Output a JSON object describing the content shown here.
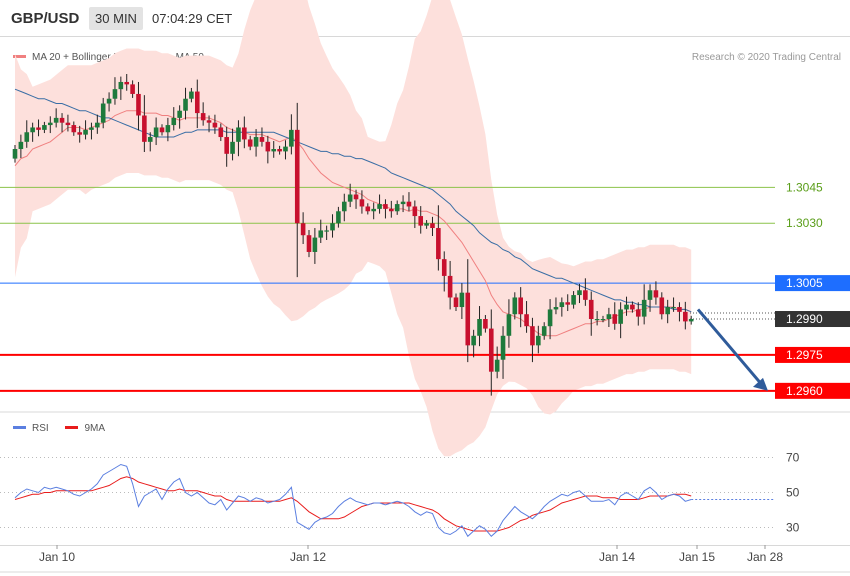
{
  "header": {
    "symbol": "GBP/USD",
    "timeframe": "30 MIN",
    "time": "07:04:29 CET"
  },
  "legend_main": {
    "ma20_label": "MA 20 + Bollinger Bands",
    "ma50_label": "MA 50",
    "ma20_color": "#f08080",
    "ma50_color": "#3a6ea5"
  },
  "copyright": "Research © 2020 Trading Central",
  "legend_rsi": {
    "rsi_label": "RSI",
    "ma9_label": "9MA",
    "rsi_color": "#5b7fe0",
    "ma9_color": "#e81c1c"
  },
  "colors": {
    "candle_up": "#1e7a3c",
    "candle_down": "#c8102e",
    "band_fill": "#fde0dc",
    "support_red": "#ff0000",
    "resistance_green": "#8bc34a",
    "pivot_blue": "#1e6eff",
    "current_dark": "#333333",
    "arrow": "#2f5b9a"
  },
  "chart_data": [
    {
      "type": "candlestick",
      "title": "GBP/USD 30 MIN",
      "ylim": [
        1.2952,
        1.3094
      ],
      "x_ticks": [
        "Jan 10",
        "Jan 12",
        "Jan 14",
        "Jan 15",
        "Jan 28"
      ],
      "current_price": "1.2990",
      "levels": [
        {
          "value": 1.3045,
          "label": "1.3045",
          "kind": "resistance",
          "color": "#8bc34a"
        },
        {
          "value": 1.303,
          "label": "1.3030",
          "kind": "resistance",
          "color": "#8bc34a"
        },
        {
          "value": 1.3005,
          "label": "1.3005",
          "kind": "pivot",
          "color": "#1e6eff"
        },
        {
          "value": 1.2975,
          "label": "1.2975",
          "kind": "support",
          "color": "#ff0000"
        },
        {
          "value": 1.296,
          "label": "1.2960",
          "kind": "support",
          "color": "#ff0000"
        }
      ],
      "closes": [
        1.3061,
        1.3064,
        1.3068,
        1.307,
        1.3069,
        1.3071,
        1.3072,
        1.3074,
        1.3072,
        1.3071,
        1.3068,
        1.3067,
        1.3069,
        1.307,
        1.3072,
        1.308,
        1.3082,
        1.3086,
        1.3089,
        1.3088,
        1.3084,
        1.3075,
        1.3064,
        1.3066,
        1.307,
        1.3068,
        1.3071,
        1.3074,
        1.3077,
        1.3082,
        1.3085,
        1.3076,
        1.3073,
        1.3072,
        1.307,
        1.3066,
        1.3059,
        1.3064,
        1.307,
        1.3065,
        1.3062,
        1.3066,
        1.3064,
        1.306,
        1.3061,
        1.306,
        1.3062,
        1.3069,
        1.303,
        1.3025,
        1.3018,
        1.3024,
        1.3027,
        1.3027,
        1.303,
        1.3035,
        1.3039,
        1.3042,
        1.304,
        1.3037,
        1.3035,
        1.3036,
        1.3038,
        1.3036,
        1.3035,
        1.3038,
        1.3039,
        1.3037,
        1.3033,
        1.3029,
        1.303,
        1.3028,
        1.3015,
        1.3008,
        1.2999,
        1.2995,
        1.3001,
        1.2979,
        1.2983,
        1.299,
        1.2986,
        1.2968,
        1.2973,
        1.2983,
        1.2992,
        1.2999,
        1.2992,
        1.2987,
        1.2979,
        1.2983,
        1.2987,
        1.2994,
        1.2995,
        1.2997,
        1.2996,
        1.3,
        1.3002,
        1.2998,
        1.299,
        1.299,
        1.299,
        1.2992,
        1.2988,
        1.2994,
        1.2996,
        1.2994,
        1.2991,
        1.2998,
        1.3002,
        1.2999,
        1.2992,
        1.2995,
        1.2995,
        1.2993,
        1.2989,
        1.299
      ],
      "series": [
        {
          "name": "MA 20 + Bollinger Bands",
          "values": [
            1.3054,
            1.3057,
            1.3058,
            1.3061,
            1.3062,
            1.3063,
            1.3064,
            1.3066,
            1.3068,
            1.307,
            1.307,
            1.307,
            1.3069,
            1.307,
            1.3071,
            1.3072,
            1.3073,
            1.3075,
            1.3076,
            1.3077,
            1.3077,
            1.3077,
            1.3076,
            1.3076,
            1.3076,
            1.3075,
            1.3075,
            1.3074,
            1.3073,
            1.3074,
            1.3074,
            1.3074,
            1.3074,
            1.3074,
            1.3073,
            1.3072,
            1.307,
            1.3069,
            1.3068,
            1.3068,
            1.3067,
            1.3067,
            1.3067,
            1.3066,
            1.3065,
            1.3064,
            1.3065,
            1.3066,
            1.3064,
            1.3061,
            1.3057,
            1.3054,
            1.3051,
            1.3049,
            1.3047,
            1.3046,
            1.3045,
            1.3044,
            1.3043,
            1.3042,
            1.304,
            1.3039,
            1.3038,
            1.3037,
            1.3036,
            1.3036,
            1.3036,
            1.3035,
            1.3036,
            1.3035,
            1.3035,
            1.3034,
            1.3033,
            1.3031,
            1.3028,
            1.3025,
            1.3022,
            1.3018,
            1.3014,
            1.301,
            1.3006,
            1.3,
            1.2996,
            1.2993,
            1.2992,
            1.2991,
            1.299,
            1.2988,
            1.2986,
            1.2984,
            1.2983,
            1.2983,
            1.2983,
            1.2984,
            1.2985,
            1.2986,
            1.2987,
            1.2988,
            1.2988,
            1.2989,
            1.2989,
            1.299,
            1.2991,
            1.2992,
            1.2993,
            1.2993,
            1.2994,
            1.2994,
            1.2995,
            1.2995,
            1.2995,
            1.2995,
            1.2995,
            1.2994,
            1.2994,
            1.2993
          ]
        },
        {
          "name": "MA 50",
          "values": [
            1.3086,
            1.3085,
            1.3084,
            1.3083,
            1.3082,
            1.3082,
            1.3081,
            1.308,
            1.308,
            1.3079,
            1.3078,
            1.3077,
            1.3077,
            1.3076,
            1.3075,
            1.3074,
            1.3074,
            1.3073,
            1.3072,
            1.3071,
            1.307,
            1.3069,
            1.3068,
            1.3067,
            1.3066,
            1.3066,
            1.3066,
            1.3066,
            1.3067,
            1.3068,
            1.3068,
            1.3069,
            1.3069,
            1.3069,
            1.3069,
            1.3069,
            1.3068,
            1.3068,
            1.3068,
            1.3068,
            1.3068,
            1.3068,
            1.3068,
            1.3068,
            1.3068,
            1.3067,
            1.3066,
            1.3065,
            1.3064,
            1.3063,
            1.3062,
            1.3061,
            1.306,
            1.306,
            1.3059,
            1.3059,
            1.3058,
            1.3058,
            1.3057,
            1.3057,
            1.3056,
            1.3055,
            1.3054,
            1.3053,
            1.3051,
            1.305,
            1.3049,
            1.3048,
            1.3047,
            1.3046,
            1.3045,
            1.3044,
            1.3042,
            1.304,
            1.3038,
            1.3035,
            1.3033,
            1.3031,
            1.3029,
            1.3026,
            1.3024,
            1.3022,
            1.3021,
            1.3019,
            1.3018,
            1.3016,
            1.3015,
            1.3013,
            1.3011,
            1.301,
            1.3009,
            1.3008,
            1.3007,
            1.3007,
            1.3006,
            1.3005,
            1.3004,
            1.3003,
            1.3002,
            1.3001,
            1.3,
            1.2999,
            1.2998,
            1.2998,
            1.2997,
            1.2997,
            1.2996,
            1.2996,
            1.2995,
            1.2995,
            1.2995,
            1.2995,
            1.2994,
            1.2994,
            1.2994,
            1.2993
          ]
        }
      ]
    },
    {
      "type": "line",
      "title": "RSI",
      "ylim": [
        20,
        80
      ],
      "y_ticks": [
        "70",
        "50",
        "30"
      ],
      "series": [
        {
          "name": "RSI",
          "values": [
            47,
            50,
            52,
            51,
            50,
            53,
            52,
            53,
            52,
            51,
            49,
            48,
            50,
            52,
            55,
            60,
            62,
            64,
            66,
            65,
            55,
            42,
            48,
            50,
            52,
            46,
            52,
            56,
            58,
            50,
            48,
            50,
            47,
            44,
            43,
            46,
            40,
            44,
            48,
            47,
            45,
            47,
            46,
            44,
            45,
            46,
            49,
            53,
            33,
            31,
            29,
            33,
            35,
            36,
            38,
            42,
            45,
            47,
            45,
            44,
            43,
            44,
            44,
            43,
            44,
            45,
            44,
            42,
            39,
            37,
            39,
            38,
            30,
            27,
            26,
            28,
            31,
            25,
            28,
            31,
            29,
            25,
            28,
            34,
            38,
            42,
            39,
            37,
            35,
            38,
            42,
            45,
            47,
            49,
            48,
            50,
            51,
            48,
            45,
            45,
            45,
            46,
            43,
            48,
            50,
            48,
            46,
            51,
            53,
            50,
            46,
            48,
            49,
            48,
            45,
            46
          ]
        },
        {
          "name": "9MA",
          "values": [
            46,
            47,
            48,
            49,
            49,
            50,
            50,
            51,
            51,
            51,
            51,
            51,
            51,
            51,
            52,
            53,
            54,
            56,
            58,
            59,
            58,
            56,
            55,
            54,
            53,
            52,
            51,
            51,
            52,
            51,
            51,
            51,
            50,
            49,
            48,
            48,
            46,
            45,
            45,
            45,
            45,
            45,
            45,
            45,
            45,
            45,
            46,
            47,
            45,
            42,
            39,
            37,
            35,
            35,
            35,
            35,
            36,
            38,
            40,
            42,
            43,
            44,
            44,
            44,
            44,
            44,
            44,
            44,
            43,
            42,
            41,
            40,
            38,
            35,
            33,
            31,
            30,
            29,
            28,
            28,
            28,
            28,
            28,
            29,
            30,
            32,
            34,
            35,
            37,
            38,
            39,
            40,
            42,
            44,
            45,
            46,
            47,
            48,
            48,
            48,
            47,
            47,
            47,
            46,
            46,
            46,
            46,
            47,
            48,
            48,
            48,
            48,
            49,
            49,
            49,
            48
          ]
        }
      ]
    }
  ]
}
